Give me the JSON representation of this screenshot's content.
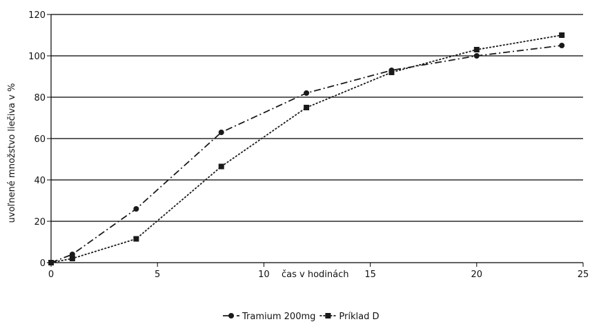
{
  "chart_data": {
    "type": "line",
    "title": "",
    "xlabel": "čas v hodinách",
    "ylabel": "uvoľnené množstvo liečiva v %",
    "xlim": [
      0,
      25
    ],
    "ylim": [
      0,
      120
    ],
    "x_ticks": [
      0,
      5,
      10,
      15,
      20,
      25
    ],
    "y_ticks": [
      0,
      20,
      40,
      60,
      80,
      100,
      120
    ],
    "grid": "horizontal",
    "legend_position": "bottom-center",
    "series": [
      {
        "name": "Tramium 200mg",
        "marker": "circle",
        "line_style": "dash-dot",
        "color": "#1a1a1a",
        "x": [
          0,
          1,
          4,
          8,
          12,
          16,
          20,
          24
        ],
        "y": [
          0,
          4,
          26,
          63,
          82,
          93,
          100,
          105
        ]
      },
      {
        "name": "Príklad D",
        "marker": "square",
        "line_style": "dotted",
        "color": "#1a1a1a",
        "x": [
          0,
          1,
          4,
          8,
          12,
          16,
          20,
          24
        ],
        "y": [
          0,
          2,
          11.5,
          46.5,
          75,
          92,
          103,
          110
        ]
      }
    ]
  }
}
